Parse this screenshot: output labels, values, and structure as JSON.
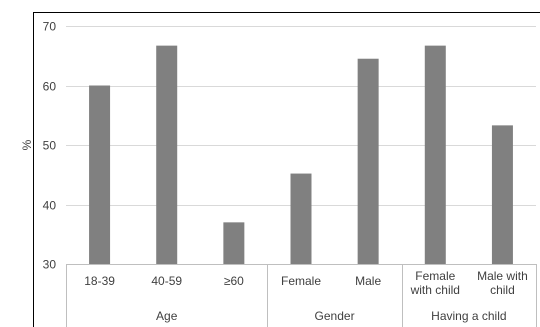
{
  "chart_data": {
    "type": "bar",
    "ylabel": "%",
    "ylim": [
      30,
      70
    ],
    "yticks": [
      "30",
      "40",
      "50",
      "60",
      "70"
    ],
    "grid": true,
    "bar_color": "#808080",
    "categories": [
      {
        "lines": [
          "18-39"
        ],
        "value": 60.0
      },
      {
        "lines": [
          "40-59"
        ],
        "value": 66.7
      },
      {
        "lines": [
          "≥60"
        ],
        "value": 37.0
      },
      {
        "lines": [
          "Female"
        ],
        "value": 45.2
      },
      {
        "lines": [
          "Male"
        ],
        "value": 64.5
      },
      {
        "lines": [
          "Female",
          "with child"
        ],
        "value": 66.7
      },
      {
        "lines": [
          "Male with",
          "child"
        ],
        "value": 53.3
      }
    ],
    "groups": [
      {
        "label": "Age",
        "start": 0,
        "end": 2
      },
      {
        "label": "Gender",
        "start": 3,
        "end": 4
      },
      {
        "label": "Having a child",
        "start": 5,
        "end": 6
      }
    ]
  }
}
